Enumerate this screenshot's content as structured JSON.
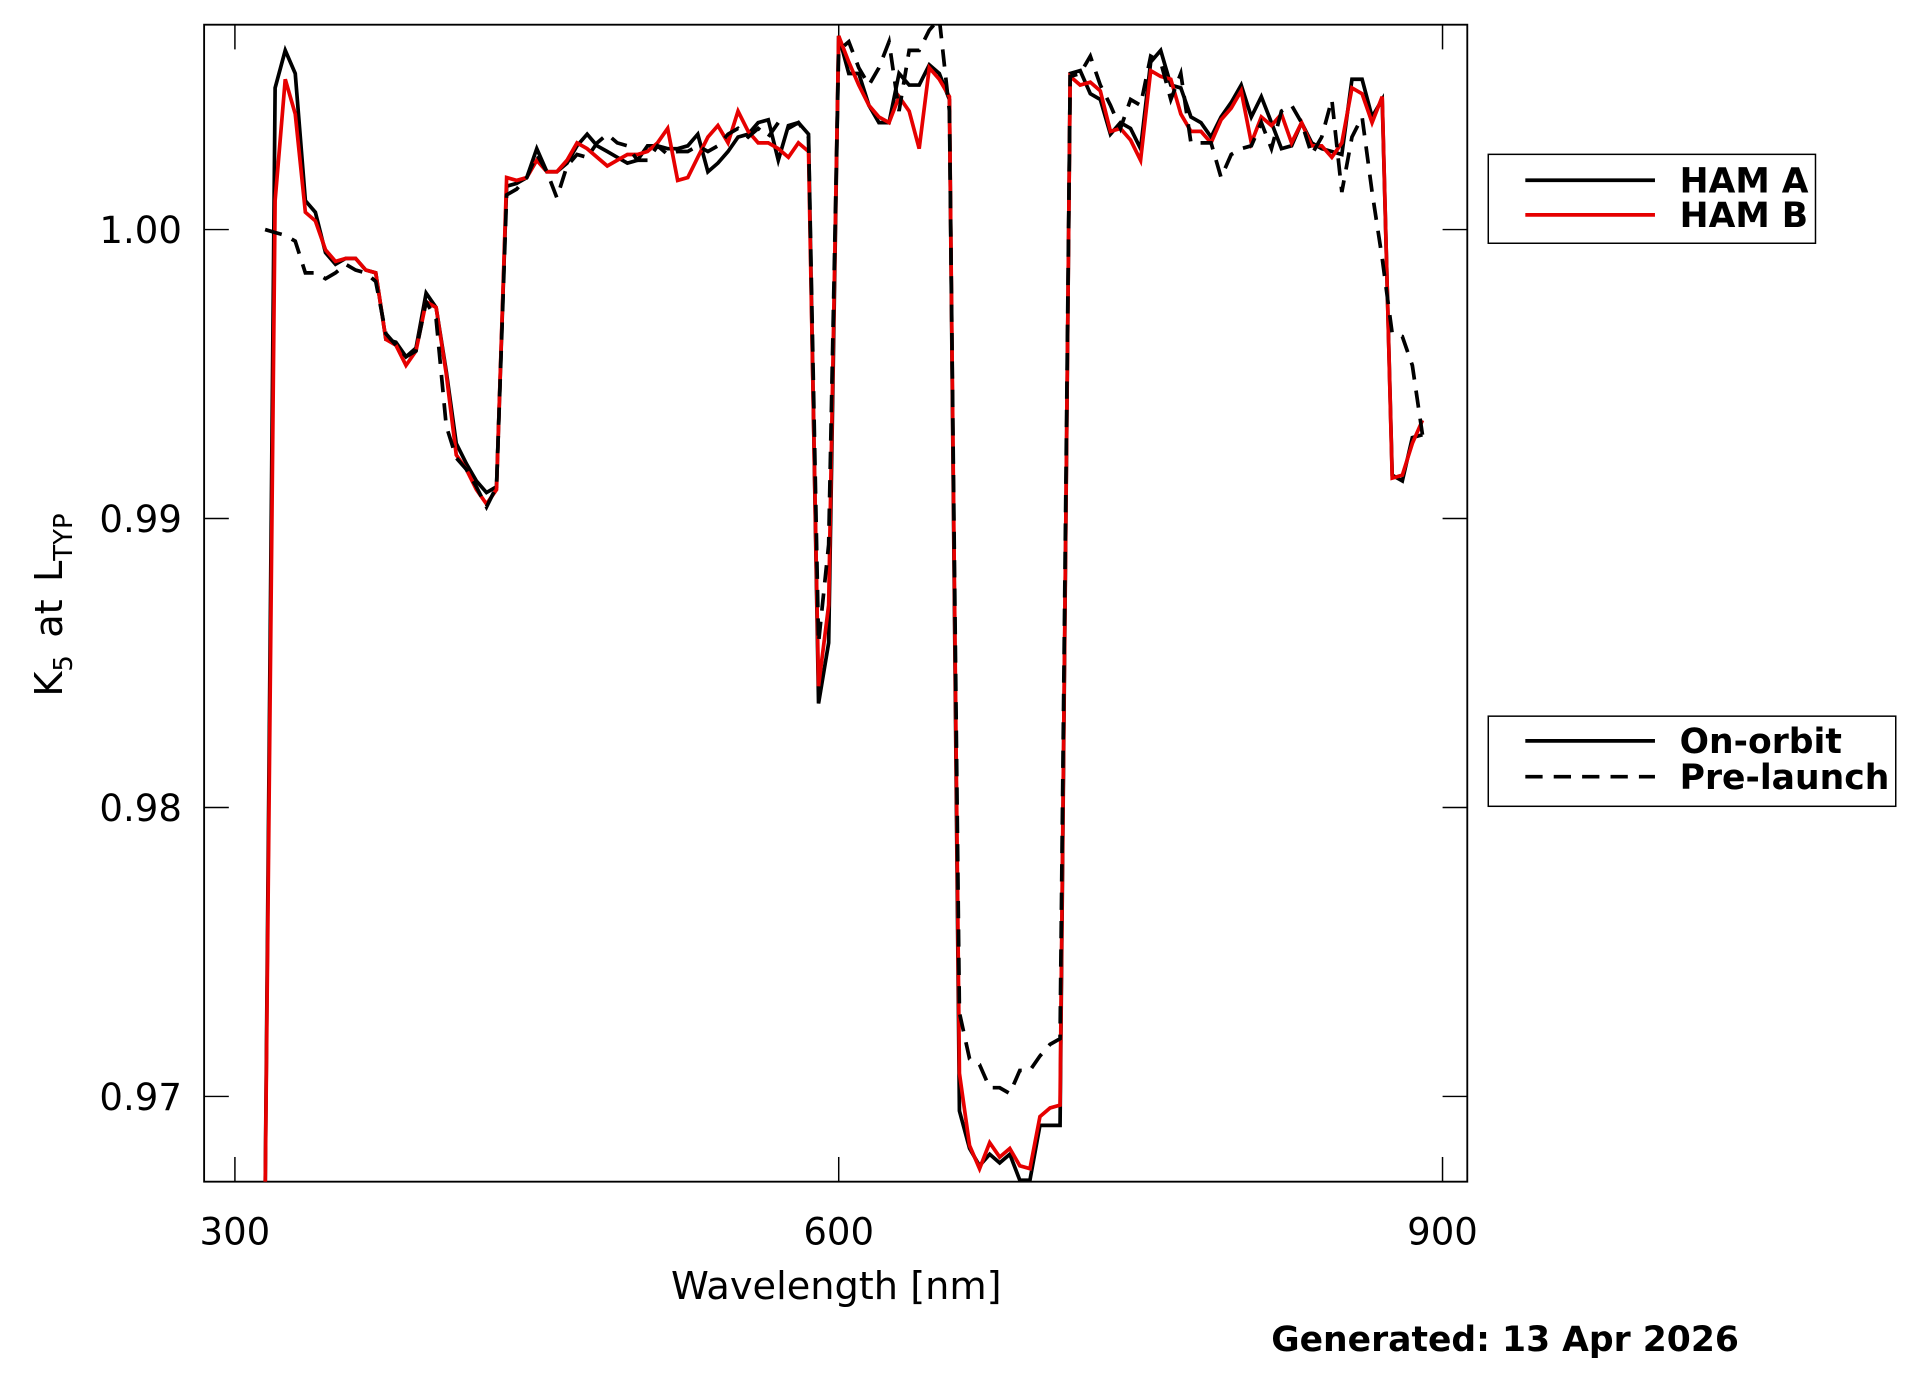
{
  "chart_data": {
    "type": "line",
    "ylabel": [
      "K",
      "5",
      "at",
      "L",
      "TYP"
    ],
    "xlabel": "Wavelength [nm]",
    "footer": "Generated: 13 Apr 2026",
    "xlim": [
      284.7,
      912.3
    ],
    "ylim": [
      0.96705,
      1.00709
    ],
    "xticks": [
      300,
      600,
      900
    ],
    "yticks": [
      0.97,
      0.98,
      0.99,
      {
        "value": 1,
        "label": "1.00"
      }
    ],
    "linestyles": {
      "On-orbit": "solid",
      "Pre-launch": "dashed"
    },
    "x": [
      315,
      320,
      325,
      330,
      335,
      340,
      345,
      350,
      355,
      360,
      365,
      370,
      375,
      380,
      385,
      390,
      395,
      400,
      405,
      410,
      415,
      420,
      425,
      430,
      435,
      440,
      445,
      450,
      455,
      460,
      465,
      470,
      475,
      480,
      485,
      490,
      495,
      500,
      505,
      510,
      515,
      520,
      525,
      530,
      535,
      540,
      545,
      550,
      555,
      560,
      565,
      570,
      575,
      580,
      585,
      590,
      595,
      600,
      605,
      610,
      615,
      620,
      625,
      630,
      635,
      640,
      645,
      650,
      655,
      660,
      665,
      670,
      675,
      680,
      685,
      690,
      695,
      700,
      705,
      710,
      715,
      720,
      725,
      730,
      735,
      740,
      745,
      750,
      755,
      760,
      765,
      770,
      775,
      780,
      785,
      790,
      795,
      800,
      805,
      810,
      815,
      820,
      825,
      830,
      835,
      840,
      845,
      850,
      855,
      860,
      865,
      870,
      875,
      880,
      885,
      890
    ],
    "series": [
      {
        "name": "HAM A",
        "style": "On-orbit",
        "color": "#000000",
        "values": [
          0.9665,
          1.0049,
          1.0062,
          1.0054,
          1.001,
          1.0006,
          0.9992,
          0.9988,
          0.999,
          0.999,
          0.9986,
          0.9985,
          0.9962,
          0.9961,
          0.9956,
          0.9959,
          0.9978,
          0.9973,
          0.9951,
          0.9926,
          0.9919,
          0.9913,
          0.9909,
          0.9911,
          1.0015,
          1.0016,
          1.0018,
          1.0028,
          1.002,
          1.002,
          1.0023,
          1.0029,
          1.0033,
          1.0029,
          1.0027,
          1.0025,
          1.0023,
          1.0024,
          1.0029,
          1.0029,
          1.0028,
          1.0028,
          1.0029,
          1.0033,
          1.002,
          1.0023,
          1.0027,
          1.0032,
          1.0033,
          1.0037,
          1.0038,
          1.0024,
          1.0036,
          1.0037,
          1.0033,
          0.9836,
          0.9857,
          1.0067,
          1.0054,
          1.0054,
          1.0043,
          1.0037,
          1.0037,
          1.0054,
          1.005,
          1.005,
          1.0057,
          1.0054,
          1.0045,
          0.9695,
          0.9682,
          0.9676,
          0.968,
          0.9677,
          0.968,
          0.9671,
          0.9671,
          0.969,
          0.969,
          0.969,
          1.0054,
          1.0055,
          1.0047,
          1.0045,
          1.0033,
          1.0037,
          1.0035,
          1.0028,
          1.0058,
          1.0062,
          1.005,
          1.0049,
          1.0039,
          1.0037,
          1.0032,
          1.0039,
          1.0044,
          1.005,
          1.0039,
          1.0046,
          1.0037,
          1.0028,
          1.0029,
          1.0037,
          1.003,
          1.0028,
          1.0027,
          1.0026,
          1.0052,
          1.0052,
          1.0039,
          1.0045,
          0.9915,
          0.9913,
          0.9928,
          0.9929
        ]
      },
      {
        "name": "HAM B",
        "style": "On-orbit",
        "color": "#e60000",
        "values": [
          0.9665,
          1.001,
          1.0052,
          1.004,
          1.0006,
          1.0003,
          0.9993,
          0.9989,
          0.999,
          0.999,
          0.9986,
          0.9985,
          0.9962,
          0.996,
          0.9953,
          0.9958,
          0.9975,
          0.9973,
          0.995,
          0.9922,
          0.9917,
          0.991,
          0.9905,
          0.991,
          1.0018,
          1.0017,
          1.0018,
          1.0024,
          1.002,
          1.002,
          1.0024,
          1.003,
          1.0028,
          1.0025,
          1.0022,
          1.0024,
          1.0026,
          1.0026,
          1.0027,
          1.003,
          1.0035,
          1.0017,
          1.0018,
          1.0025,
          1.0032,
          1.0036,
          1.003,
          1.0041,
          1.0034,
          1.003,
          1.003,
          1.0028,
          1.0025,
          1.003,
          1.0027,
          0.9842,
          0.987,
          1.0067,
          1.0058,
          1.005,
          1.0043,
          1.0039,
          1.0037,
          1.0046,
          1.0041,
          1.0028,
          1.0056,
          1.0052,
          1.0046,
          0.9708,
          0.9683,
          0.9675,
          0.9684,
          0.9679,
          0.9682,
          0.9676,
          0.9675,
          0.9693,
          0.9696,
          0.9697,
          1.0053,
          1.005,
          1.0051,
          1.0048,
          1.0034,
          1.0035,
          1.0031,
          1.0024,
          1.0055,
          1.0053,
          1.0052,
          1.004,
          1.0034,
          1.0034,
          1.003,
          1.0038,
          1.0042,
          1.0048,
          1.003,
          1.0039,
          1.0036,
          1.004,
          1.003,
          1.0037,
          1.0029,
          1.0029,
          1.0025,
          1.003,
          1.0049,
          1.0047,
          1.0037,
          1.0046,
          0.9914,
          0.9915,
          0.9926,
          0.9934
        ]
      },
      {
        "name": "HAM A",
        "style": "Pre-launch",
        "color": "#000000",
        "values": [
          1.0,
          0.9999,
          0.9998,
          0.9996,
          0.9985,
          0.9985,
          0.9983,
          0.9985,
          0.9988,
          0.9986,
          0.9985,
          0.9982,
          0.9964,
          0.996,
          0.9956,
          0.9958,
          0.9975,
          0.9969,
          0.9932,
          0.9921,
          0.9917,
          0.9911,
          0.9904,
          0.9911,
          1.0012,
          1.0014,
          1.0018,
          1.0026,
          1.002,
          1.0011,
          1.0022,
          1.0026,
          1.0025,
          1.003,
          1.0033,
          1.003,
          1.0029,
          1.0024,
          1.0024,
          1.0029,
          1.0026,
          1.0027,
          1.0027,
          1.0029,
          1.0027,
          1.0029,
          1.0033,
          1.0035,
          1.0032,
          1.0035,
          1.0032,
          1.0037,
          1.0035,
          1.0037,
          1.0032,
          0.9857,
          0.9891,
          1.0062,
          1.0065,
          1.0056,
          1.005,
          1.0056,
          1.0065,
          1.0041,
          1.0062,
          1.0062,
          1.0069,
          1.0073,
          1.0041,
          0.9729,
          0.9713,
          0.9711,
          0.9703,
          0.9703,
          0.9701,
          0.9709,
          0.9709,
          0.9714,
          0.9718,
          0.972,
          1.0053,
          1.0054,
          1.006,
          1.005,
          1.0043,
          1.0035,
          1.0045,
          1.0043,
          1.006,
          1.0058,
          1.0045,
          1.0054,
          1.003,
          1.003,
          1.003,
          1.0018,
          1.0026,
          1.0028,
          1.0029,
          1.0037,
          1.0028,
          1.0041,
          1.0043,
          1.0037,
          1.0026,
          1.0032,
          1.0045,
          1.0013,
          1.0032,
          1.0039,
          1.0013,
          0.999,
          0.9964,
          0.9963,
          0.9953,
          0.9929
        ]
      }
    ]
  }
}
